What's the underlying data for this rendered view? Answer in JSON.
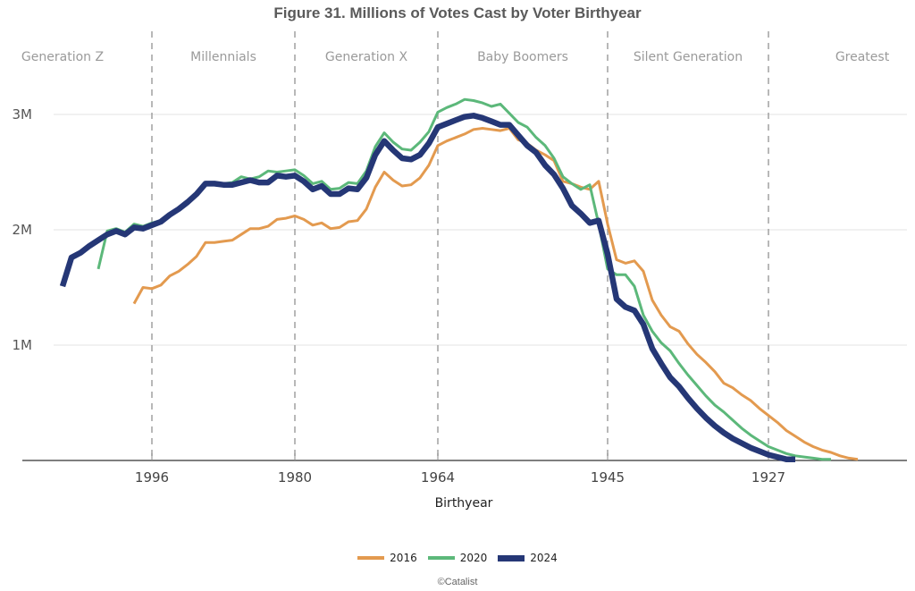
{
  "chart_data": {
    "type": "line",
    "title": "Figure 31. Millions of Votes Cast by Voter Birthyear",
    "xlabel": "Birthyear",
    "ylabel": "",
    "x_reversed": true,
    "xlim": [
      2016,
      1906
    ],
    "ylim": [
      0,
      3.0
    ],
    "x_ticks": [
      1996,
      1980,
      1964,
      1945,
      1927
    ],
    "x_tick_labels": [
      "1996",
      "1980",
      "1964",
      "1945",
      "1927"
    ],
    "y_ticks": [
      1,
      2,
      3
    ],
    "y_tick_labels": [
      "1M",
      "2M",
      "3M"
    ],
    "grid": "horizontal",
    "legend_position": "bottom-center",
    "generations": [
      {
        "name": "Generation Z",
        "from": 2016,
        "to": 1996
      },
      {
        "name": "Millennials",
        "from": 1996,
        "to": 1980
      },
      {
        "name": "Generation X",
        "from": 1980,
        "to": 1964
      },
      {
        "name": "Baby Boomers",
        "from": 1964,
        "to": 1945
      },
      {
        "name": "Silent Generation",
        "from": 1945,
        "to": 1927
      },
      {
        "name": "Greatest",
        "from": 1927,
        "to": 1906
      }
    ],
    "generation_boundaries": [
      1996,
      1980,
      1964,
      1945,
      1927
    ],
    "series": [
      {
        "name": "2016",
        "color": "#E39A4F",
        "x": [
          1998,
          1997,
          1996,
          1995,
          1994,
          1993,
          1992,
          1991,
          1990,
          1989,
          1988,
          1987,
          1986,
          1985,
          1984,
          1983,
          1982,
          1981,
          1980,
          1979,
          1978,
          1977,
          1976,
          1975,
          1974,
          1973,
          1972,
          1971,
          1970,
          1969,
          1968,
          1967,
          1966,
          1965,
          1964,
          1963,
          1962,
          1961,
          1960,
          1959,
          1958,
          1957,
          1956,
          1955,
          1954,
          1953,
          1952,
          1951,
          1950,
          1949,
          1948,
          1947,
          1946,
          1945,
          1944,
          1943,
          1942,
          1941,
          1940,
          1939,
          1938,
          1937,
          1936,
          1935,
          1934,
          1933,
          1932,
          1931,
          1930,
          1929,
          1928,
          1927,
          1926,
          1925,
          1924,
          1923,
          1922,
          1921,
          1920,
          1919,
          1918,
          1917
        ],
        "values": [
          1.36,
          1.5,
          1.49,
          1.52,
          1.6,
          1.64,
          1.7,
          1.77,
          1.89,
          1.89,
          1.9,
          1.91,
          1.96,
          2.01,
          2.01,
          2.03,
          2.09,
          2.1,
          2.12,
          2.09,
          2.04,
          2.06,
          2.01,
          2.02,
          2.07,
          2.08,
          2.18,
          2.37,
          2.5,
          2.43,
          2.38,
          2.39,
          2.45,
          2.56,
          2.73,
          2.77,
          2.8,
          2.83,
          2.87,
          2.88,
          2.87,
          2.86,
          2.88,
          2.78,
          2.75,
          2.69,
          2.65,
          2.6,
          2.42,
          2.4,
          2.37,
          2.35,
          2.42,
          2.05,
          1.74,
          1.71,
          1.73,
          1.64,
          1.39,
          1.26,
          1.16,
          1.12,
          1.01,
          0.92,
          0.85,
          0.77,
          0.67,
          0.63,
          0.57,
          0.52,
          0.45,
          0.39,
          0.33,
          0.26,
          0.21,
          0.16,
          0.12,
          0.09,
          0.07,
          0.04,
          0.02,
          0.01
        ]
      },
      {
        "name": "2020",
        "color": "#5CB87A",
        "x": [
          2002,
          2001,
          2000,
          1999,
          1998,
          1997,
          1996,
          1995,
          1994,
          1993,
          1992,
          1991,
          1990,
          1989,
          1988,
          1987,
          1986,
          1985,
          1984,
          1983,
          1982,
          1981,
          1980,
          1979,
          1978,
          1977,
          1976,
          1975,
          1974,
          1973,
          1972,
          1971,
          1970,
          1969,
          1968,
          1967,
          1966,
          1965,
          1964,
          1963,
          1962,
          1961,
          1960,
          1959,
          1958,
          1957,
          1956,
          1955,
          1954,
          1953,
          1952,
          1951,
          1950,
          1949,
          1948,
          1947,
          1946,
          1945,
          1944,
          1943,
          1942,
          1941,
          1940,
          1939,
          1938,
          1937,
          1936,
          1935,
          1934,
          1933,
          1932,
          1931,
          1930,
          1929,
          1928,
          1927,
          1926,
          1925,
          1924,
          1923,
          1922,
          1921,
          1920
        ],
        "values": [
          1.66,
          1.99,
          2.01,
          1.98,
          2.05,
          2.03,
          2.06,
          2.08,
          2.14,
          2.19,
          2.25,
          2.32,
          2.41,
          2.4,
          2.4,
          2.41,
          2.46,
          2.44,
          2.46,
          2.51,
          2.5,
          2.51,
          2.52,
          2.47,
          2.4,
          2.42,
          2.35,
          2.36,
          2.41,
          2.4,
          2.51,
          2.72,
          2.84,
          2.76,
          2.7,
          2.69,
          2.76,
          2.85,
          3.02,
          3.06,
          3.09,
          3.13,
          3.12,
          3.1,
          3.07,
          3.09,
          3.01,
          2.93,
          2.89,
          2.8,
          2.73,
          2.62,
          2.46,
          2.4,
          2.35,
          2.39,
          2.05,
          1.66,
          1.61,
          1.61,
          1.51,
          1.26,
          1.12,
          1.02,
          0.95,
          0.84,
          0.74,
          0.65,
          0.56,
          0.48,
          0.42,
          0.35,
          0.28,
          0.22,
          0.17,
          0.12,
          0.09,
          0.06,
          0.04,
          0.03,
          0.02,
          0.01,
          0.01
        ]
      },
      {
        "name": "2024",
        "color": "#253776",
        "x": [
          2006,
          2005,
          2004,
          2003,
          2002,
          2001,
          2000,
          1999,
          1998,
          1997,
          1996,
          1995,
          1994,
          1993,
          1992,
          1991,
          1990,
          1989,
          1988,
          1987,
          1986,
          1985,
          1984,
          1983,
          1982,
          1981,
          1980,
          1979,
          1978,
          1977,
          1976,
          1975,
          1974,
          1973,
          1972,
          1971,
          1970,
          1969,
          1968,
          1967,
          1966,
          1965,
          1964,
          1963,
          1962,
          1961,
          1960,
          1959,
          1958,
          1957,
          1956,
          1955,
          1954,
          1953,
          1952,
          1951,
          1950,
          1949,
          1948,
          1947,
          1946,
          1945,
          1944,
          1943,
          1942,
          1941,
          1940,
          1939,
          1938,
          1937,
          1936,
          1935,
          1934,
          1933,
          1932,
          1931,
          1930,
          1929,
          1928,
          1927,
          1926,
          1925,
          1924
        ],
        "values": [
          1.51,
          1.76,
          1.8,
          1.86,
          1.91,
          1.96,
          1.99,
          1.96,
          2.02,
          2.01,
          2.04,
          2.07,
          2.13,
          2.18,
          2.24,
          2.31,
          2.4,
          2.4,
          2.39,
          2.39,
          2.41,
          2.43,
          2.41,
          2.41,
          2.47,
          2.46,
          2.47,
          2.42,
          2.35,
          2.38,
          2.31,
          2.31,
          2.36,
          2.35,
          2.45,
          2.65,
          2.77,
          2.69,
          2.62,
          2.61,
          2.65,
          2.75,
          2.89,
          2.92,
          2.95,
          2.98,
          2.99,
          2.97,
          2.94,
          2.91,
          2.91,
          2.82,
          2.73,
          2.67,
          2.56,
          2.48,
          2.36,
          2.21,
          2.14,
          2.06,
          2.08,
          1.79,
          1.4,
          1.33,
          1.3,
          1.18,
          0.97,
          0.84,
          0.72,
          0.64,
          0.54,
          0.45,
          0.37,
          0.3,
          0.24,
          0.19,
          0.15,
          0.11,
          0.08,
          0.05,
          0.03,
          0.01,
          0.01
        ]
      }
    ]
  },
  "legend": {
    "items": [
      {
        "label": "2016",
        "color": "#E39A4F"
      },
      {
        "label": "2020",
        "color": "#5CB87A"
      },
      {
        "label": "2024",
        "color": "#253776"
      }
    ]
  },
  "credit": "©Catalist"
}
